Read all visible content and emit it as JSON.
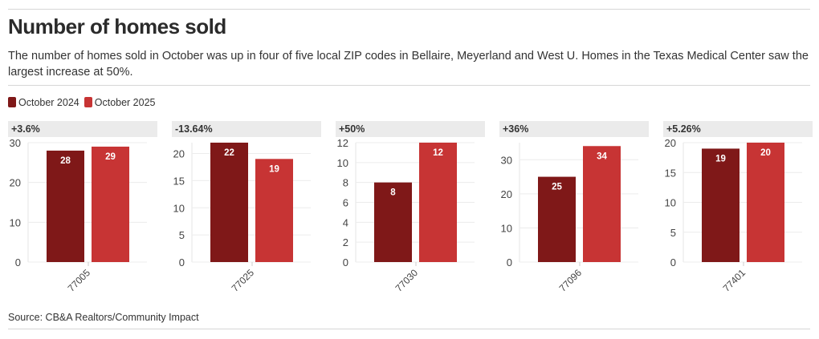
{
  "title": "Number of homes sold",
  "subtitle": "The number of homes sold in October was up in four of five local ZIP codes in Bellaire, Meyerland and West U. Homes in the Texas Medical Center saw the largest increase at 50%.",
  "source": "Source: CB&A Realtors/Community Impact",
  "colors": {
    "oct2024": "#7f1818",
    "oct2025": "#c73434"
  },
  "chart_data": {
    "type": "bar",
    "legend": [
      "October 2024",
      "October 2025"
    ],
    "legend_position": "top-left",
    "panels": [
      {
        "category": "77005",
        "change": "+3.6%",
        "values": [
          28,
          29
        ],
        "ylim": [
          0,
          30
        ],
        "ticks": [
          0,
          10,
          20,
          30
        ]
      },
      {
        "category": "77025",
        "change": "-13.64%",
        "values": [
          22,
          19
        ],
        "ylim": [
          0,
          22
        ],
        "ticks": [
          0,
          5,
          10,
          15,
          20
        ]
      },
      {
        "category": "77030",
        "change": "+50%",
        "values": [
          8,
          12
        ],
        "ylim": [
          0,
          12
        ],
        "ticks": [
          0,
          2,
          4,
          6,
          8,
          10,
          12
        ]
      },
      {
        "category": "77096",
        "change": "+36%",
        "values": [
          25,
          34
        ],
        "ylim": [
          0,
          35
        ],
        "ticks": [
          0,
          10,
          20,
          30
        ]
      },
      {
        "category": "77401",
        "change": "+5.26%",
        "values": [
          19,
          20
        ],
        "ylim": [
          0,
          20
        ],
        "ticks": [
          0,
          5,
          10,
          15,
          20
        ]
      }
    ]
  }
}
